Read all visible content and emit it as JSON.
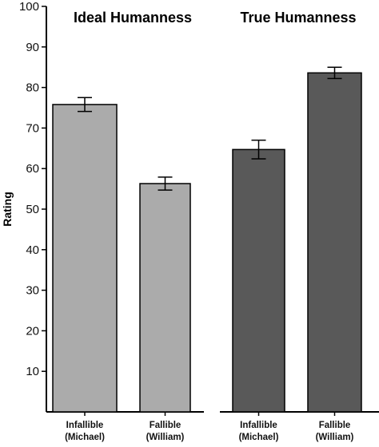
{
  "chart_data": {
    "type": "bar",
    "ylabel": "Rating",
    "ylim": [
      0,
      100
    ],
    "yticks": [
      10,
      20,
      30,
      40,
      50,
      60,
      70,
      80,
      90,
      100
    ],
    "grid": false,
    "panels": [
      {
        "title": "Ideal Humanness",
        "color": "#ababab",
        "categories": [
          [
            "Infallible",
            "(Michael)"
          ],
          [
            "Fallible",
            "(William)"
          ]
        ],
        "values": [
          75.8,
          56.3
        ],
        "errors": [
          1.7,
          1.6
        ]
      },
      {
        "title": "True Humanness",
        "color": "#595959",
        "categories": [
          [
            "Infallible",
            "(Michael)"
          ],
          [
            "Fallible",
            "(William)"
          ]
        ],
        "values": [
          64.7,
          83.6
        ],
        "errors": [
          2.3,
          1.4
        ]
      }
    ]
  }
}
